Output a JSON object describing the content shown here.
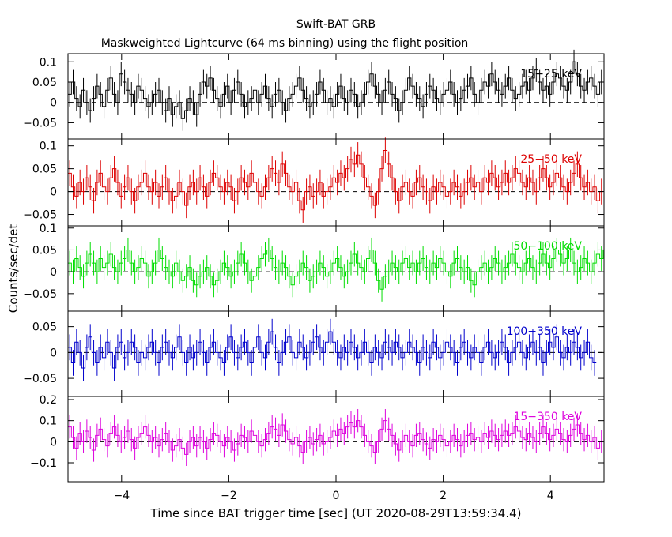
{
  "chart_data": {
    "type": "line",
    "title": "Swift-BAT GRB",
    "subtitle": "Maskweighted Lightcurve (64 ms binning) using the flight position",
    "xlabel": "Time since BAT trigger time [sec] (UT 2020-08-29T13:59:34.4)",
    "ylabel": "Counts/sec/det",
    "xlim": [
      -5,
      5
    ],
    "x_ticks": [
      -4,
      -2,
      0,
      2,
      4
    ],
    "x_tick_labels": [
      "−4",
      "−2",
      "0",
      "2",
      "4"
    ],
    "bin_width_sec": 0.064,
    "zero_line": "dashed",
    "error_bars": true,
    "grid": false,
    "panels": [
      {
        "name": "15−25 keV",
        "color": "#000000",
        "ylim": [
          -0.09,
          0.12
        ],
        "y_ticks": [
          -0.05,
          0,
          0.05,
          0.1
        ],
        "y_tick_labels": [
          "−0.05",
          "0",
          "0.05",
          "0.1"
        ],
        "err": 0.03,
        "values": [
          0.02,
          0.05,
          0.01,
          -0.01,
          0.03,
          0.0,
          -0.02,
          0.01,
          0.04,
          0.02,
          -0.01,
          0.03,
          0.06,
          0.02,
          0.0,
          0.07,
          0.05,
          0.03,
          0.02,
          0.0,
          0.04,
          0.03,
          0.01,
          -0.01,
          0.0,
          0.02,
          0.03,
          0.0,
          -0.02,
          0.01,
          -0.03,
          -0.01,
          0.0,
          -0.04,
          -0.02,
          0.01,
          0.0,
          -0.03,
          0.02,
          0.05,
          0.04,
          0.06,
          0.03,
          0.01,
          -0.01,
          0.02,
          0.04,
          0.0,
          0.03,
          0.05,
          0.02,
          -0.01,
          0.0,
          0.01,
          0.03,
          0.0,
          0.02,
          0.04,
          0.01,
          -0.01,
          0.02,
          0.03,
          0.0,
          -0.02,
          0.01,
          0.02,
          0.04,
          0.06,
          0.03,
          0.01,
          -0.01,
          0.0,
          0.02,
          0.05,
          0.03,
          0.0,
          0.01,
          -0.01,
          0.02,
          0.04,
          0.01,
          0.0,
          0.03,
          0.02,
          -0.01,
          0.0,
          0.02,
          0.05,
          0.07,
          0.04,
          0.02,
          0.0,
          0.03,
          0.05,
          0.02,
          0.01,
          -0.02,
          0.0,
          0.03,
          0.06,
          0.04,
          0.02,
          0.01,
          -0.01,
          0.02,
          0.04,
          0.03,
          0.01,
          0.0,
          0.02,
          0.03,
          0.05,
          0.02,
          0.0,
          0.01,
          0.03,
          0.04,
          0.06,
          0.02,
          0.0,
          0.03,
          0.05,
          0.04,
          0.07,
          0.05,
          0.03,
          0.02,
          0.04,
          0.06,
          0.03,
          0.01,
          0.02,
          0.04,
          0.05,
          0.03,
          0.06,
          0.08,
          0.05,
          0.03,
          0.04,
          0.02,
          0.05,
          0.07,
          0.06,
          0.04,
          0.03,
          0.05,
          0.1,
          0.07,
          0.04,
          0.03,
          0.05,
          0.06,
          0.04,
          0.02,
          0.05
        ]
      },
      {
        "name": "25−50 keV",
        "color": "#dd0000",
        "ylim": [
          -0.075,
          0.115
        ],
        "y_ticks": [
          -0.05,
          0,
          0.05,
          0.1
        ],
        "y_tick_labels": [
          "−0.05",
          "0",
          "0.05",
          "0.1"
        ],
        "err": 0.028,
        "values": [
          0.04,
          0.01,
          -0.01,
          0.02,
          0.0,
          0.03,
          0.01,
          -0.02,
          0.02,
          0.04,
          0.01,
          0.0,
          0.03,
          0.05,
          0.02,
          -0.01,
          0.01,
          0.03,
          0.0,
          -0.02,
          0.01,
          0.02,
          0.04,
          0.01,
          0.0,
          0.02,
          -0.01,
          0.01,
          0.03,
          0.0,
          -0.02,
          -0.01,
          0.02,
          0.0,
          -0.03,
          0.01,
          0.02,
          0.0,
          0.03,
          0.01,
          -0.01,
          0.02,
          0.04,
          0.03,
          0.01,
          0.0,
          0.02,
          0.01,
          -0.02,
          0.0,
          0.03,
          0.02,
          0.01,
          0.04,
          0.02,
          0.0,
          -0.01,
          0.01,
          0.03,
          0.05,
          0.04,
          0.02,
          0.06,
          0.04,
          0.01,
          0.0,
          0.02,
          -0.02,
          -0.04,
          0.0,
          0.01,
          -0.01,
          0.0,
          0.02,
          -0.01,
          0.0,
          0.01,
          0.03,
          0.02,
          0.04,
          0.03,
          0.05,
          0.07,
          0.06,
          0.08,
          0.06,
          0.03,
          0.01,
          -0.01,
          -0.03,
          0.0,
          0.05,
          0.09,
          0.06,
          0.03,
          0.0,
          -0.02,
          0.01,
          0.02,
          0.0,
          -0.01,
          0.02,
          0.03,
          0.01,
          0.0,
          -0.02,
          0.01,
          0.0,
          0.02,
          0.01,
          -0.01,
          0.0,
          0.02,
          0.01,
          -0.01,
          0.0,
          0.02,
          0.03,
          0.01,
          0.02,
          0.0,
          0.03,
          0.02,
          0.04,
          0.03,
          0.01,
          0.02,
          0.04,
          0.02,
          0.03,
          0.05,
          0.04,
          0.02,
          0.01,
          0.03,
          0.02,
          0.0,
          0.03,
          0.05,
          0.03,
          0.01,
          0.02,
          0.04,
          0.03,
          0.01,
          0.0,
          0.02,
          0.04,
          0.06,
          0.03,
          0.01,
          0.02,
          0.0,
          0.01,
          -0.02,
          0.0
        ]
      },
      {
        "name": "50−100 keV",
        "color": "#00dd00",
        "ylim": [
          -0.09,
          0.105
        ],
        "y_ticks": [
          -0.05,
          0,
          0.05,
          0.1
        ],
        "y_tick_labels": [
          "−0.05",
          "0",
          "0.05",
          "0.1"
        ],
        "err": 0.028,
        "values": [
          0.02,
          0.0,
          0.03,
          0.01,
          -0.01,
          0.02,
          0.04,
          0.02,
          0.0,
          0.03,
          0.01,
          0.02,
          0.04,
          0.01,
          0.0,
          0.02,
          0.03,
          0.05,
          0.02,
          0.0,
          0.01,
          0.03,
          0.02,
          -0.01,
          0.0,
          0.02,
          0.05,
          0.03,
          0.01,
          0.0,
          -0.01,
          0.02,
          0.0,
          -0.02,
          -0.01,
          0.01,
          -0.02,
          -0.03,
          -0.01,
          0.0,
          0.01,
          -0.01,
          -0.03,
          -0.02,
          0.0,
          0.02,
          0.01,
          -0.01,
          0.0,
          0.02,
          0.04,
          0.02,
          0.0,
          -0.02,
          -0.01,
          0.01,
          0.03,
          0.04,
          0.05,
          0.03,
          0.01,
          0.0,
          0.02,
          0.01,
          -0.01,
          -0.03,
          -0.01,
          0.0,
          0.02,
          0.01,
          -0.02,
          -0.01,
          0.0,
          0.02,
          0.01,
          -0.01,
          0.0,
          0.02,
          0.03,
          0.01,
          -0.01,
          0.0,
          0.02,
          0.04,
          0.02,
          0.01,
          0.0,
          0.03,
          0.05,
          0.02,
          -0.02,
          -0.04,
          -0.01,
          0.0,
          0.02,
          0.01,
          0.0,
          0.02,
          0.03,
          0.01,
          0.02,
          0.0,
          0.02,
          0.03,
          0.01,
          0.0,
          0.02,
          0.01,
          0.03,
          0.02,
          0.0,
          -0.01,
          0.02,
          0.03,
          0.01,
          0.0,
          0.01,
          -0.02,
          -0.03,
          0.0,
          0.01,
          0.02,
          0.0,
          0.01,
          0.03,
          0.02,
          0.0,
          0.01,
          0.02,
          0.04,
          0.02,
          0.01,
          0.0,
          0.02,
          0.03,
          0.01,
          0.0,
          0.02,
          0.04,
          0.02,
          0.01,
          0.03,
          0.05,
          0.04,
          0.02,
          0.03,
          0.05,
          0.02,
          0.0,
          0.01,
          0.03,
          0.02,
          0.0,
          0.02,
          0.04,
          0.03,
          0.05
        ]
      },
      {
        "name": "100−350 keV",
        "color": "#0000cc",
        "ylim": [
          -0.085,
          0.08
        ],
        "y_ticks": [
          -0.05,
          0,
          0.05
        ],
        "y_tick_labels": [
          "−0.05",
          "0",
          "0.05"
        ],
        "err": 0.025,
        "values": [
          0.01,
          -0.02,
          0.02,
          0.0,
          -0.03,
          0.01,
          0.03,
          0.0,
          -0.02,
          0.01,
          -0.01,
          0.02,
          0.0,
          -0.03,
          0.01,
          0.02,
          -0.01,
          0.0,
          0.02,
          0.01,
          -0.02,
          0.0,
          -0.01,
          0.01,
          0.02,
          0.0,
          -0.02,
          0.01,
          0.02,
          0.0,
          -0.01,
          0.01,
          0.03,
          0.0,
          -0.02,
          0.01,
          -0.01,
          0.0,
          0.02,
          0.0,
          -0.02,
          0.01,
          0.02,
          0.0,
          -0.01,
          -0.02,
          0.01,
          0.03,
          0.0,
          -0.01,
          0.01,
          0.02,
          0.0,
          -0.02,
          0.01,
          0.03,
          0.0,
          -0.01,
          0.02,
          0.04,
          0.01,
          -0.02,
          0.0,
          0.02,
          0.03,
          0.0,
          -0.01,
          0.02,
          0.01,
          -0.01,
          0.0,
          0.02,
          0.03,
          0.01,
          0.0,
          0.02,
          0.04,
          0.02,
          0.0,
          -0.01,
          0.01,
          0.0,
          0.02,
          0.01,
          -0.01,
          0.0,
          0.02,
          0.0,
          -0.02,
          0.01,
          0.0,
          -0.01,
          0.02,
          0.01,
          0.0,
          0.02,
          0.01,
          -0.01,
          0.0,
          0.02,
          0.01,
          0.0,
          -0.02,
          0.01,
          0.0,
          -0.01,
          0.02,
          0.01,
          -0.01,
          0.0,
          0.02,
          0.01,
          0.0,
          -0.02,
          0.01,
          0.02,
          0.0,
          -0.01,
          0.01,
          0.0,
          -0.02,
          0.01,
          0.02,
          0.0,
          -0.01,
          0.0,
          0.02,
          0.01,
          -0.02,
          0.0,
          0.01,
          0.02,
          0.0,
          -0.01,
          0.01,
          0.02,
          0.0,
          0.01,
          -0.02,
          0.0,
          0.02,
          0.01,
          0.03,
          0.0,
          -0.01,
          0.01,
          0.0,
          0.02,
          0.01,
          -0.01,
          0.0,
          0.02,
          -0.01,
          -0.02
        ]
      },
      {
        "name": "15−350 keV",
        "color": "#dd00dd",
        "ylim": [
          -0.19,
          0.215
        ],
        "y_ticks": [
          -0.1,
          0,
          0.1,
          0.2
        ],
        "y_tick_labels": [
          "−0.1",
          "0",
          "0.1",
          "0.2"
        ],
        "err": 0.055,
        "values": [
          0.07,
          0.02,
          -0.03,
          0.04,
          0.0,
          0.05,
          0.02,
          -0.04,
          0.03,
          0.06,
          0.01,
          -0.02,
          0.04,
          0.07,
          0.03,
          0.0,
          0.02,
          0.05,
          0.01,
          -0.03,
          0.02,
          0.04,
          0.07,
          0.03,
          0.0,
          0.02,
          -0.02,
          0.01,
          0.04,
          0.0,
          -0.04,
          -0.02,
          0.01,
          -0.03,
          -0.06,
          0.0,
          0.02,
          -0.02,
          0.02,
          0.0,
          -0.03,
          0.01,
          0.04,
          0.03,
          0.0,
          -0.02,
          0.02,
          0.0,
          -0.04,
          -0.01,
          0.03,
          0.02,
          0.0,
          0.05,
          0.03,
          0.0,
          -0.02,
          0.01,
          0.04,
          0.07,
          0.06,
          0.03,
          0.08,
          0.05,
          0.01,
          -0.01,
          0.02,
          -0.02,
          -0.05,
          0.0,
          0.02,
          -0.01,
          0.01,
          0.03,
          -0.01,
          0.0,
          0.02,
          0.05,
          0.03,
          0.06,
          0.04,
          0.07,
          0.09,
          0.07,
          0.1,
          0.07,
          0.03,
          0.0,
          -0.02,
          -0.05,
          0.0,
          0.06,
          0.1,
          0.06,
          0.03,
          -0.01,
          -0.04,
          0.0,
          0.03,
          0.0,
          -0.02,
          0.03,
          0.04,
          0.01,
          -0.01,
          -0.03,
          0.01,
          0.0,
          0.03,
          0.01,
          -0.02,
          0.0,
          0.03,
          0.01,
          -0.02,
          0.0,
          0.03,
          0.04,
          0.01,
          0.02,
          0.0,
          0.04,
          0.02,
          0.05,
          0.03,
          0.01,
          0.03,
          0.05,
          0.03,
          0.04,
          0.07,
          0.05,
          0.02,
          0.01,
          0.04,
          0.02,
          0.0,
          0.04,
          0.07,
          0.04,
          0.01,
          0.03,
          0.06,
          0.04,
          0.01,
          0.0,
          0.03,
          0.06,
          0.08,
          0.04,
          0.01,
          0.03,
          0.0,
          0.02,
          -0.03,
          0.0
        ]
      }
    ]
  }
}
